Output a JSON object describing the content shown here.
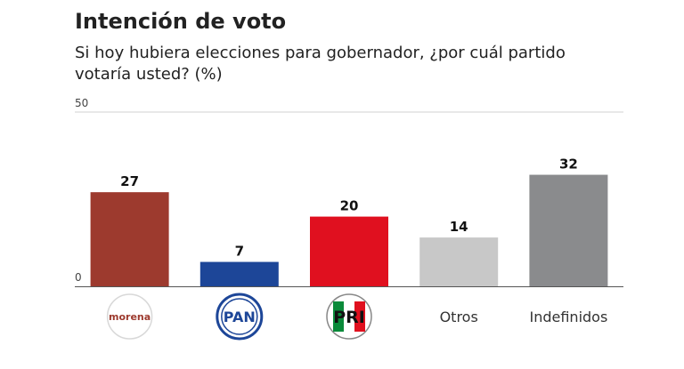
{
  "chart_data": {
    "type": "bar",
    "title": "Intención de voto",
    "subtitle": "Si hoy hubiera elecciones para gobernador, ¿por cuál partido votaría usted? (%)",
    "categories": [
      "morena",
      "PAN",
      "PRI",
      "Otros",
      "Indefinidos"
    ],
    "category_display": [
      "logo",
      "logo",
      "logo",
      "text",
      "text"
    ],
    "values": [
      27,
      7,
      20,
      14,
      32
    ],
    "colors": [
      "#9d3a2e",
      "#1d4698",
      "#e0101f",
      "#c8c8c8",
      "#8a8b8d"
    ],
    "ylim": [
      0,
      50
    ],
    "yticks": [
      "0",
      "50"
    ],
    "xlabel": "",
    "ylabel": "",
    "grid": true
  }
}
